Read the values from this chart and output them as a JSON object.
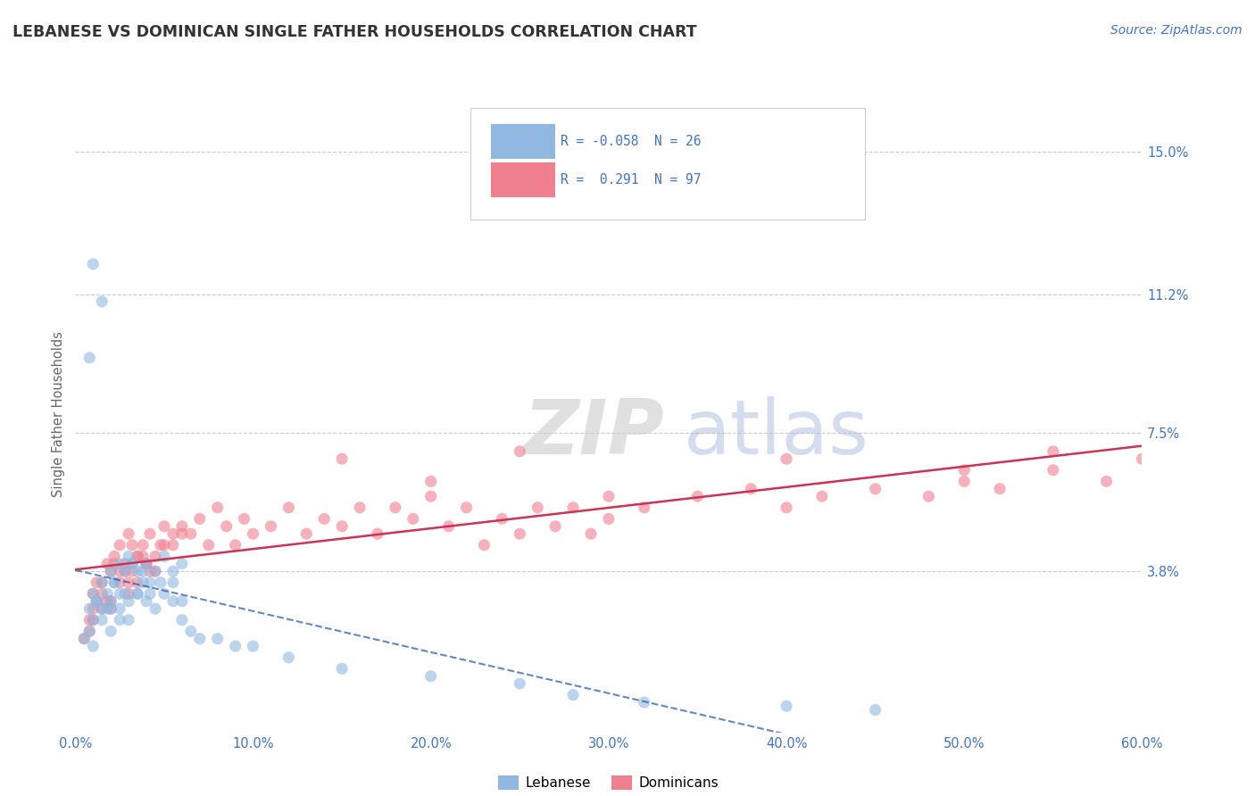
{
  "title": "LEBANESE VS DOMINICAN SINGLE FATHER HOUSEHOLDS CORRELATION CHART",
  "source": "Source: ZipAtlas.com",
  "ylabel": "Single Father Households",
  "xlim": [
    0.0,
    0.6
  ],
  "ylim": [
    -0.005,
    0.165
  ],
  "yticks": [
    0.038,
    0.075,
    0.112,
    0.15
  ],
  "ytick_labels": [
    "3.8%",
    "7.5%",
    "11.2%",
    "15.0%"
  ],
  "xticks": [
    0.0,
    0.1,
    0.2,
    0.3,
    0.4,
    0.5,
    0.6
  ],
  "xtick_labels": [
    "0.0%",
    "10.0%",
    "20.0%",
    "30.0%",
    "40.0%",
    "50.0%",
    "60.0%"
  ],
  "grid_color": "#cccccc",
  "background_color": "#ffffff",
  "title_color": "#333333",
  "axis_label_color": "#666666",
  "tick_color": "#4472c4",
  "lebanese_color": "#90b8e0",
  "dominican_color": "#f08090",
  "lebanese_line_color": "#2255aa",
  "dominican_line_color": "#cc3355",
  "watermark_zip_color": "#cccccc",
  "watermark_atlas_color": "#aabbdd",
  "legend_text_color": "#333333",
  "legend_border_color": "#cccccc",
  "lebanese_x": [
    0.005,
    0.008,
    0.01,
    0.01,
    0.012,
    0.015,
    0.015,
    0.018,
    0.02,
    0.02,
    0.022,
    0.025,
    0.025,
    0.028,
    0.03,
    0.03,
    0.032,
    0.035,
    0.035,
    0.038,
    0.04,
    0.042,
    0.045,
    0.05,
    0.055,
    0.06,
    0.008,
    0.012,
    0.018,
    0.022,
    0.028,
    0.032,
    0.038,
    0.042,
    0.048,
    0.055,
    0.01,
    0.015,
    0.02,
    0.025,
    0.03,
    0.035,
    0.04,
    0.045,
    0.05,
    0.06,
    0.008,
    0.01,
    0.015,
    0.02,
    0.025,
    0.055,
    0.06,
    0.065,
    0.07,
    0.08,
    0.09,
    0.1,
    0.12,
    0.15,
    0.2,
    0.25,
    0.28,
    0.32,
    0.4,
    0.45
  ],
  "lebanese_y": [
    0.02,
    0.028,
    0.032,
    0.025,
    0.03,
    0.035,
    0.028,
    0.032,
    0.03,
    0.038,
    0.035,
    0.04,
    0.032,
    0.038,
    0.042,
    0.03,
    0.04,
    0.038,
    0.032,
    0.035,
    0.04,
    0.035,
    0.038,
    0.042,
    0.035,
    0.04,
    0.022,
    0.03,
    0.028,
    0.035,
    0.032,
    0.04,
    0.038,
    0.032,
    0.035,
    0.038,
    0.018,
    0.025,
    0.022,
    0.028,
    0.025,
    0.032,
    0.03,
    0.028,
    0.032,
    0.03,
    0.095,
    0.12,
    0.11,
    0.028,
    0.025,
    0.03,
    0.025,
    0.022,
    0.02,
    0.02,
    0.018,
    0.018,
    0.015,
    0.012,
    0.01,
    0.008,
    0.005,
    0.003,
    0.002,
    0.001
  ],
  "dominican_x": [
    0.005,
    0.008,
    0.01,
    0.01,
    0.012,
    0.015,
    0.015,
    0.018,
    0.02,
    0.02,
    0.022,
    0.025,
    0.025,
    0.028,
    0.03,
    0.03,
    0.032,
    0.035,
    0.035,
    0.038,
    0.04,
    0.042,
    0.045,
    0.05,
    0.055,
    0.06,
    0.008,
    0.012,
    0.018,
    0.022,
    0.028,
    0.032,
    0.038,
    0.042,
    0.048,
    0.055,
    0.01,
    0.015,
    0.02,
    0.025,
    0.03,
    0.035,
    0.04,
    0.045,
    0.05,
    0.06,
    0.065,
    0.07,
    0.075,
    0.08,
    0.085,
    0.09,
    0.095,
    0.1,
    0.11,
    0.12,
    0.13,
    0.14,
    0.15,
    0.16,
    0.17,
    0.18,
    0.19,
    0.2,
    0.21,
    0.22,
    0.23,
    0.24,
    0.25,
    0.26,
    0.27,
    0.28,
    0.29,
    0.3,
    0.32,
    0.35,
    0.38,
    0.4,
    0.42,
    0.45,
    0.48,
    0.5,
    0.52,
    0.55,
    0.58,
    0.6,
    0.15,
    0.2,
    0.25,
    0.3,
    0.4,
    0.5,
    0.55
  ],
  "dominican_y": [
    0.02,
    0.025,
    0.028,
    0.032,
    0.03,
    0.035,
    0.028,
    0.04,
    0.03,
    0.038,
    0.042,
    0.035,
    0.045,
    0.04,
    0.048,
    0.032,
    0.038,
    0.042,
    0.035,
    0.045,
    0.04,
    0.048,
    0.042,
    0.05,
    0.045,
    0.048,
    0.022,
    0.035,
    0.03,
    0.04,
    0.038,
    0.045,
    0.042,
    0.038,
    0.045,
    0.048,
    0.025,
    0.032,
    0.028,
    0.038,
    0.035,
    0.042,
    0.04,
    0.038,
    0.045,
    0.05,
    0.048,
    0.052,
    0.045,
    0.055,
    0.05,
    0.045,
    0.052,
    0.048,
    0.05,
    0.055,
    0.048,
    0.052,
    0.05,
    0.055,
    0.048,
    0.055,
    0.052,
    0.058,
    0.05,
    0.055,
    0.045,
    0.052,
    0.048,
    0.055,
    0.05,
    0.055,
    0.048,
    0.052,
    0.055,
    0.058,
    0.06,
    0.055,
    0.058,
    0.06,
    0.058,
    0.062,
    0.06,
    0.065,
    0.062,
    0.068,
    0.068,
    0.062,
    0.07,
    0.058,
    0.068,
    0.065,
    0.07
  ]
}
